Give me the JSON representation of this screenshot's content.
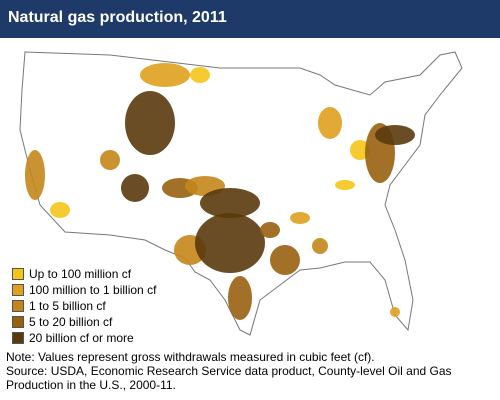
{
  "header": {
    "title": "Natural gas production, 2011"
  },
  "legend": {
    "items": [
      {
        "label": "Up to 100 million cf",
        "color": "#f5c518"
      },
      {
        "label": "100 million to 1 billion cf",
        "color": "#dfa11e"
      },
      {
        "label": "1 to 5 billion cf",
        "color": "#c4861a"
      },
      {
        "label": "5 to 20 billion cf",
        "color": "#98600f"
      },
      {
        "label": "20 billion cf or more",
        "color": "#5a3a0c"
      }
    ]
  },
  "note": "Note: Values represent gross withdrawals measured in cubic feet (cf).",
  "source": "Source: USDA, Economic Research Service data product, County-level Oil and Gas Production in the U.S., 2000-11."
}
